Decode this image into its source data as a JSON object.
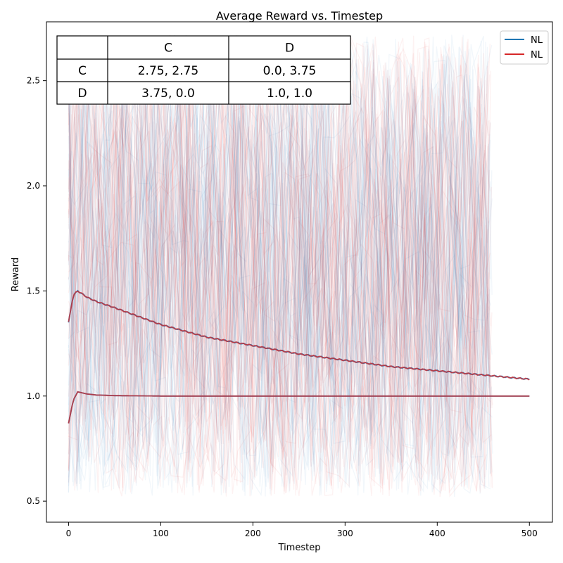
{
  "chart_data": {
    "type": "line",
    "title": "Average Reward vs. Timestep",
    "xlabel": "Timestep",
    "ylabel": "Reward",
    "xlim": [
      -24,
      525
    ],
    "ylim": [
      0.4,
      2.78
    ],
    "xticks": [
      0,
      100,
      200,
      300,
      400,
      500
    ],
    "yticks": [
      0.5,
      1.0,
      1.5,
      2.0,
      2.5
    ],
    "xtick_labels": [
      "0",
      "100",
      "200",
      "300",
      "400",
      "500"
    ],
    "ytick_labels": [
      "0.5",
      "1.0",
      "1.5",
      "2.0",
      "2.5"
    ],
    "grid": false,
    "legend_position": "top-right",
    "series": [
      {
        "name": "NL",
        "color": "#1f77b4",
        "mean_upper": {
          "x": [
            0,
            5,
            10,
            20,
            30,
            50,
            75,
            100,
            150,
            200,
            250,
            300,
            350,
            400,
            450,
            500
          ],
          "y": [
            1.35,
            1.48,
            1.5,
            1.47,
            1.45,
            1.42,
            1.38,
            1.34,
            1.28,
            1.24,
            1.2,
            1.17,
            1.14,
            1.12,
            1.1,
            1.08
          ]
        },
        "mean_lower": {
          "x": [
            0,
            5,
            10,
            20,
            30,
            50,
            75,
            100,
            150,
            200,
            300,
            400,
            500
          ],
          "y": [
            0.87,
            0.98,
            1.02,
            1.01,
            1.005,
            1.002,
            1.001,
            1.0,
            1.0,
            1.0,
            1.0,
            1.0,
            1.0
          ]
        }
      },
      {
        "name": "NL",
        "color": "#d62728",
        "mean_upper": {
          "x": [
            0,
            5,
            10,
            20,
            30,
            50,
            75,
            100,
            150,
            200,
            250,
            300,
            350,
            400,
            450,
            500
          ],
          "y": [
            1.35,
            1.48,
            1.5,
            1.47,
            1.45,
            1.42,
            1.38,
            1.34,
            1.28,
            1.24,
            1.2,
            1.17,
            1.14,
            1.12,
            1.1,
            1.08
          ]
        },
        "mean_lower": {
          "x": [
            0,
            5,
            10,
            20,
            30,
            50,
            75,
            100,
            150,
            200,
            300,
            400,
            500
          ],
          "y": [
            0.87,
            0.98,
            1.02,
            1.01,
            1.005,
            1.002,
            1.001,
            1.0,
            1.0,
            1.0,
            1.0,
            1.0,
            1.0
          ]
        }
      }
    ],
    "background_traces": {
      "description": "",
      "x_range": [
        0,
        460
      ],
      "y_range": [
        0.52,
        2.72
      ]
    },
    "payoff_table": {
      "header": [
        "",
        "C",
        "D"
      ],
      "rows": [
        [
          "C",
          "2.75, 2.75",
          "0.0, 3.75"
        ],
        [
          "D",
          "3.75, 0.0",
          "1.0, 1.0"
        ]
      ]
    }
  }
}
